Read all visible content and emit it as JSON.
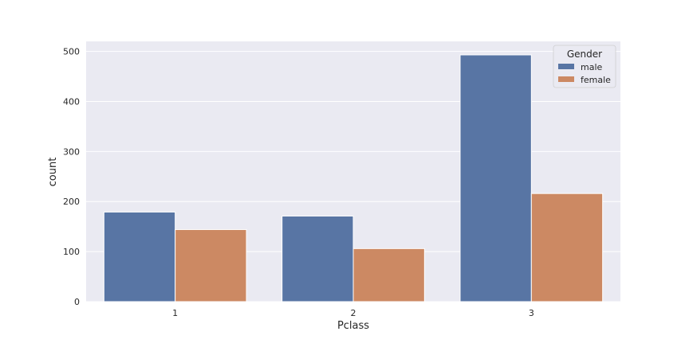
{
  "chart_data": {
    "type": "bar",
    "xlabel": "Pclass",
    "ylabel": "count",
    "categories": [
      "1",
      "2",
      "3"
    ],
    "series": [
      {
        "name": "male",
        "values": [
          179,
          171,
          493
        ],
        "color": "#5875a4"
      },
      {
        "name": "female",
        "values": [
          144,
          106,
          216
        ],
        "color": "#cc8963"
      }
    ],
    "ylim": [
      0,
      520
    ],
    "yticks": [
      0,
      100,
      200,
      300,
      400,
      500
    ],
    "grid": true,
    "legend": {
      "title": "Gender",
      "placement": "top-right"
    },
    "background": "#eaeaf2"
  }
}
